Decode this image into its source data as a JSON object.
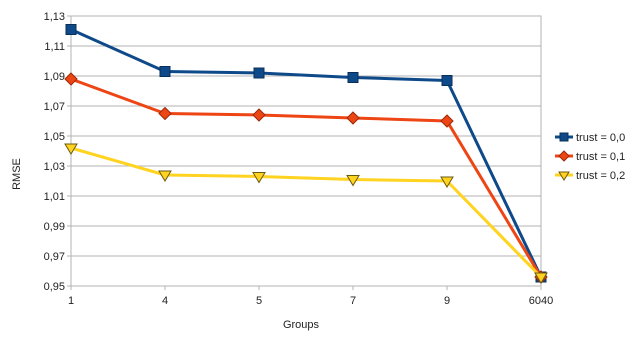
{
  "chart_data": {
    "type": "line",
    "title": "",
    "xlabel": "Groups",
    "ylabel": "RMSE",
    "categories": [
      "1",
      "4",
      "5",
      "7",
      "9",
      "6040"
    ],
    "yticks": [
      "0,95",
      "0,97",
      "0,99",
      "1,01",
      "1,03",
      "1,05",
      "1,07",
      "1,09",
      "1,11",
      "1,13"
    ],
    "ylim": [
      0.95,
      1.13
    ],
    "grid": true,
    "legend_position": "right",
    "series": [
      {
        "name": "trust = 0,0",
        "values": [
          1.121,
          1.093,
          1.092,
          1.089,
          1.087,
          0.956
        ],
        "color": "#0e4a8a",
        "marker": "square"
      },
      {
        "name": "trust = 0,1",
        "values": [
          1.088,
          1.065,
          1.064,
          1.062,
          1.06,
          0.956
        ],
        "color": "#ee4514",
        "marker": "diamond"
      },
      {
        "name": "trust = 0,2",
        "values": [
          1.042,
          1.024,
          1.023,
          1.021,
          1.02,
          0.956
        ],
        "color": "#ffd320",
        "marker": "triangle-down"
      }
    ]
  }
}
